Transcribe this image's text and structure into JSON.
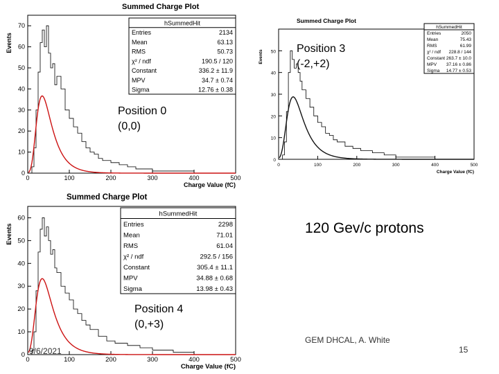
{
  "slide": {
    "labels": {
      "p0_name": "Position 0",
      "p0_coord": "(0,0)",
      "p3_name": "Position 3",
      "p3_coord": "(-2,+2)",
      "p4_name": "Position 4",
      "p4_coord": "(0,+3)",
      "beam": "120 Gev/c protons"
    },
    "footer": {
      "date": "9/6/2021",
      "author": "GEM DHCAL, A. White",
      "page": "15"
    }
  },
  "chart_data": [
    {
      "type": "line",
      "id": "position-0",
      "title": "Summed Charge Plot",
      "xlabel": "Charge Value (fC)",
      "ylabel": "Events",
      "xlim": [
        0,
        500
      ],
      "ylim": [
        0,
        75
      ],
      "xticks": [
        0,
        100,
        200,
        300,
        400,
        500
      ],
      "yticks": [
        0,
        10,
        20,
        30,
        40,
        50,
        60,
        70
      ],
      "stats": {
        "name": "hSummedHit",
        "rows": [
          [
            "Entries",
            "2134"
          ],
          [
            "Mean",
            "63.13"
          ],
          [
            "RMS",
            "50.73"
          ],
          [
            "χ² / ndf",
            "190.5 / 120"
          ],
          [
            "Constant",
            "336.2 ± 11.9"
          ],
          [
            "MPV",
            "34.7 ± 0.74"
          ],
          [
            "Sigma",
            "12.76 ± 0.38"
          ]
        ]
      },
      "fit": {
        "function": "landau",
        "constant": 336.2,
        "mpv": 34.7,
        "sigma": 12.76
      },
      "series": [
        {
          "x": [
            10,
            15,
            20,
            25,
            30,
            35,
            40,
            45,
            50,
            55,
            60,
            65,
            70,
            80,
            90,
            100,
            110,
            120,
            130,
            140,
            150,
            160,
            170,
            180,
            200,
            220,
            240,
            260,
            300,
            350,
            400,
            450
          ],
          "values": [
            3,
            12,
            30,
            48,
            62,
            68,
            60,
            70,
            57,
            50,
            52,
            42,
            46,
            40,
            30,
            26,
            22,
            19,
            15,
            12,
            10,
            9,
            7,
            6,
            5,
            4,
            3,
            2,
            1,
            1,
            0,
            0
          ]
        }
      ]
    },
    {
      "type": "line",
      "id": "position-3",
      "title": "Summed Charge Plot",
      "xlabel": "Charge Value (fC)",
      "ylabel": "Events",
      "xlim": [
        0,
        500
      ],
      "ylim": [
        0,
        60
      ],
      "xticks": [
        0,
        100,
        200,
        300,
        400,
        500
      ],
      "yticks": [
        0,
        10,
        20,
        30,
        40,
        50
      ],
      "stats": {
        "name": "hSummedHit",
        "rows": [
          [
            "Entries",
            "2050"
          ],
          [
            "Mean",
            "75.43"
          ],
          [
            "RMS",
            "61.99"
          ],
          [
            "χ² / ndf",
            "228.8 / 144"
          ],
          [
            "Constant",
            "263.7 ± 10.0"
          ],
          [
            "MPV",
            "37.16 ± 0.86"
          ],
          [
            "Sigma",
            "14.77 ± 0.53"
          ]
        ]
      },
      "fit": {
        "function": "landau",
        "constant": 263.7,
        "mpv": 37.16,
        "sigma": 14.77
      },
      "series": [
        {
          "x": [
            10,
            15,
            20,
            25,
            30,
            35,
            40,
            45,
            50,
            55,
            60,
            70,
            80,
            90,
            100,
            110,
            120,
            130,
            140,
            150,
            170,
            190,
            210,
            240,
            270,
            300,
            350,
            400
          ],
          "values": [
            2,
            8,
            22,
            40,
            50,
            46,
            42,
            44,
            40,
            36,
            32,
            28,
            24,
            20,
            17,
            15,
            12,
            11,
            9,
            8,
            6,
            5,
            4,
            3,
            2,
            1,
            1,
            0
          ]
        }
      ]
    },
    {
      "type": "line",
      "id": "position-4",
      "title": "Summed Charge Plot",
      "xlabel": "Charge Value (fC)",
      "ylabel": "Events",
      "xlim": [
        0,
        500
      ],
      "ylim": [
        0,
        65
      ],
      "xticks": [
        0,
        100,
        200,
        300,
        400,
        500
      ],
      "yticks": [
        0,
        10,
        20,
        30,
        40,
        50,
        60
      ],
      "stats": {
        "name": "hSummedHit",
        "rows": [
          [
            "Entries",
            "2298"
          ],
          [
            "Mean",
            "71.01"
          ],
          [
            "RMS",
            "61.04"
          ],
          [
            "χ² / ndf",
            "292.5 / 156"
          ],
          [
            "Constant",
            "305.4 ± 11.1"
          ],
          [
            "MPV",
            "34.88 ± 0.68"
          ],
          [
            "Sigma",
            "13.98 ± 0.43"
          ]
        ]
      },
      "fit": {
        "function": "landau",
        "constant": 305.4,
        "mpv": 34.88,
        "sigma": 13.98
      },
      "series": [
        {
          "x": [
            10,
            15,
            20,
            25,
            30,
            35,
            40,
            45,
            50,
            55,
            60,
            65,
            70,
            80,
            90,
            100,
            110,
            120,
            130,
            140,
            150,
            170,
            190,
            210,
            240,
            270,
            300,
            350,
            400
          ],
          "values": [
            2,
            10,
            28,
            45,
            55,
            60,
            52,
            56,
            50,
            44,
            46,
            38,
            36,
            30,
            27,
            24,
            20,
            18,
            15,
            13,
            11,
            8,
            6,
            5,
            4,
            3,
            2,
            1,
            0
          ]
        }
      ]
    }
  ]
}
